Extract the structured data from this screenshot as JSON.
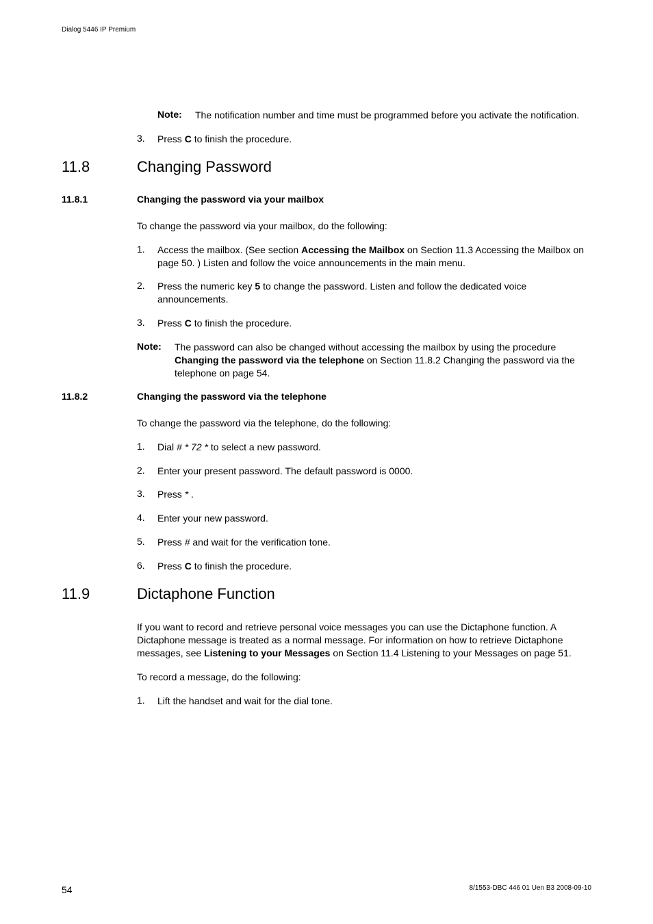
{
  "running_head": "Dialog 5446 IP Premium",
  "top_note": {
    "label": "Note:",
    "text_a": "The notification number and time must be programmed before you activate the notification."
  },
  "top_step3": {
    "num": "3.",
    "a": "Press ",
    "b": "C",
    "c": " to finish the procedure."
  },
  "s118": {
    "num": "11.8",
    "title": "Changing Password"
  },
  "s1181": {
    "num": "11.8.1",
    "title": "Changing the password via your mailbox",
    "intro": "To change the password via your mailbox, do the following:",
    "step1": {
      "num": "1.",
      "a1": "Access the mailbox.  (See section ",
      "a2": "Accessing the Mailbox",
      "a3": " on Section 11.3 Accessing the Mailbox on page 50.  )  Listen and follow the voice announcements in the main menu."
    },
    "step2": {
      "num": "2.",
      "a1": "Press the numeric key ",
      "a2": "5",
      "a3": " to change the password.  Listen and follow the dedicated voice announcements."
    },
    "step3": {
      "num": "3.",
      "a1": "Press ",
      "a2": "C",
      "a3": " to finish the procedure."
    },
    "note": {
      "label": "Note:",
      "a1": "The password can also be changed without accessing the mailbox by using the procedure ",
      "a2": "Changing the password via the telephone",
      "a3": " on Section 11.8.2 Changing the password via the telephone on page 54."
    }
  },
  "s1182": {
    "num": "11.8.2",
    "title": "Changing the password via the telephone",
    "intro": "To change the password via the telephone, do the following:",
    "step1": {
      "num": "1.",
      "a1": "Dial ",
      "a2": "# * 72 *",
      "a3": " to select a new password."
    },
    "step2": {
      "num": "2.",
      "a": "Enter your present password.  The default password is 0000."
    },
    "step3": {
      "num": "3.",
      "a1": "Press ",
      "a2": "*",
      "a3": " ."
    },
    "step4": {
      "num": "4.",
      "a": "Enter your new password."
    },
    "step5": {
      "num": "5.",
      "a1": "Press ",
      "a2": "#",
      "a3": " and wait for the verification tone."
    },
    "step6": {
      "num": "6.",
      "a1": "Press ",
      "a2": "C",
      "a3": " to finish the procedure."
    }
  },
  "s119": {
    "num": "11.9",
    "title": "Dictaphone Function",
    "para_a1": "If you want to record and retrieve personal voice messages you can use the Dictaphone function.  A Dictaphone message is treated as a normal message. For information on how to retrieve Dictaphone messages, see ",
    "para_a2": "Listening to your Messages",
    "para_a3": " on Section 11.4 Listening to your Messages on page 51.",
    "para_b": "To record a message, do the following:",
    "step1": {
      "num": "1.",
      "a": "Lift the handset and wait for the dial tone."
    }
  },
  "footer": {
    "page": "54",
    "docref": "8/1553-DBC 446 01 Uen B3  2008-09-10"
  }
}
